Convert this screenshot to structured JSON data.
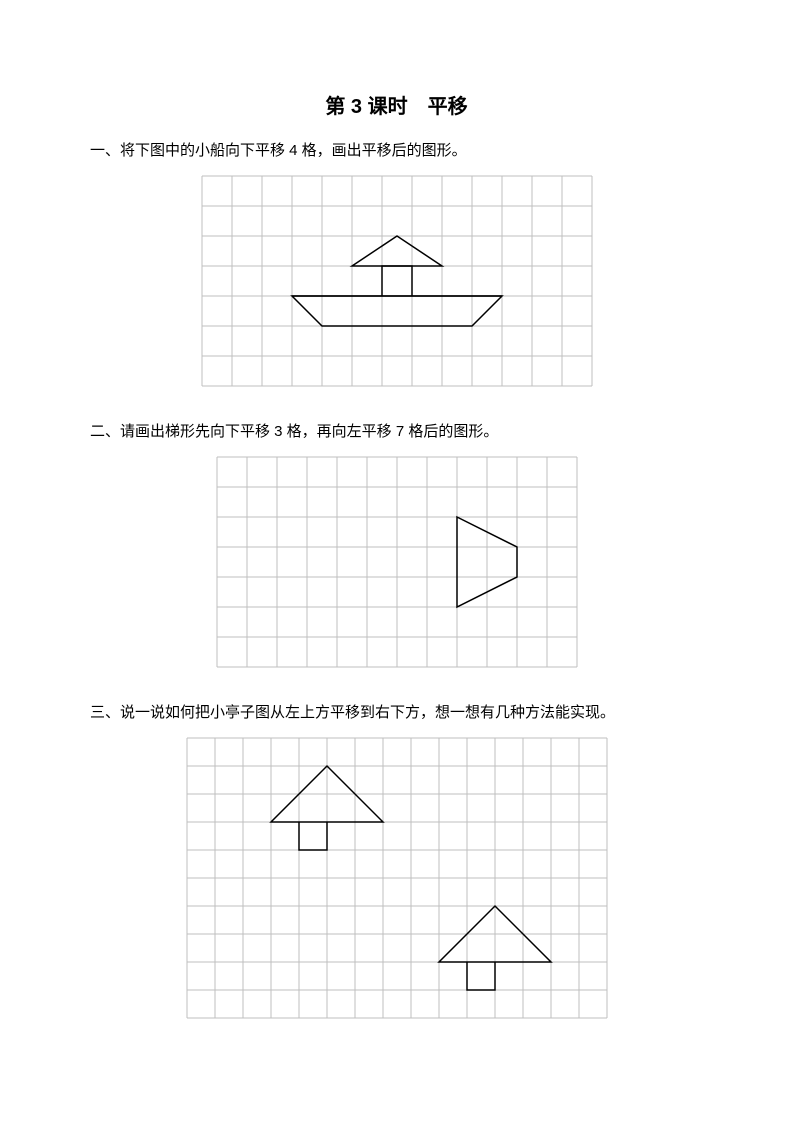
{
  "title": "第 3 课时　平移",
  "questions": {
    "q1": "一、将下图中的小船向下平移 4 格，画出平移后的图形。",
    "q2": "二、请画出梯形先向下平移 3 格，再向左平移 7 格后的图形。",
    "q3": "三、说一说如何把小亭子图从左上方平移到右下方，想一想有几种方法能实现。"
  },
  "figures": {
    "fig1": {
      "type": "grid-diagram",
      "grid": {
        "cols": 13,
        "rows": 7,
        "cell": 30
      },
      "colors": {
        "grid": "#bfbfbf",
        "shape": "#000000",
        "bg": "#ffffff"
      },
      "line_width": {
        "grid": 1,
        "shape": 1.5
      },
      "shapes": [
        {
          "name": "boat-hull",
          "type": "polygon",
          "points": [
            [
              3,
              4
            ],
            [
              10,
              4
            ],
            [
              9,
              5
            ],
            [
              4,
              5
            ]
          ]
        },
        {
          "name": "boat-deck-line",
          "type": "polyline",
          "points": [
            [
              3,
              4
            ],
            [
              10,
              4
            ]
          ]
        },
        {
          "name": "boat-cabin",
          "type": "polyline",
          "points": [
            [
              6,
              4
            ],
            [
              6,
              3
            ],
            [
              7,
              3
            ],
            [
              7,
              4
            ]
          ]
        },
        {
          "name": "boat-sail",
          "type": "polygon",
          "points": [
            [
              5,
              3
            ],
            [
              8,
              3
            ],
            [
              6.5,
              2
            ]
          ]
        }
      ]
    },
    "fig2": {
      "type": "grid-diagram",
      "grid": {
        "cols": 12,
        "rows": 7,
        "cell": 30
      },
      "colors": {
        "grid": "#bfbfbf",
        "shape": "#000000",
        "bg": "#ffffff"
      },
      "line_width": {
        "grid": 1,
        "shape": 1.5
      },
      "shapes": [
        {
          "name": "trapezoid",
          "type": "polygon",
          "points": [
            [
              8,
              2
            ],
            [
              10,
              3
            ],
            [
              10,
              4
            ],
            [
              8,
              5
            ]
          ]
        }
      ]
    },
    "fig3": {
      "type": "grid-diagram",
      "grid": {
        "cols": 15,
        "rows": 10,
        "cell": 28
      },
      "colors": {
        "grid": "#bfbfbf",
        "shape": "#000000",
        "bg": "#ffffff"
      },
      "line_width": {
        "grid": 1,
        "shape": 1.5
      },
      "shapes": [
        {
          "name": "pavilion-top-roof",
          "type": "polygon",
          "points": [
            [
              3,
              3
            ],
            [
              7,
              3
            ],
            [
              5,
              1
            ]
          ]
        },
        {
          "name": "pavilion-top-base",
          "type": "polyline",
          "points": [
            [
              4,
              3
            ],
            [
              4,
              4
            ],
            [
              5,
              4
            ],
            [
              5,
              3
            ]
          ]
        },
        {
          "name": "pavilion-bottom-roof",
          "type": "polygon",
          "points": [
            [
              9,
              8
            ],
            [
              13,
              8
            ],
            [
              11,
              6
            ]
          ]
        },
        {
          "name": "pavilion-bottom-base",
          "type": "polyline",
          "points": [
            [
              10,
              8
            ],
            [
              10,
              9
            ],
            [
              11,
              9
            ],
            [
              11,
              8
            ]
          ]
        }
      ]
    }
  }
}
